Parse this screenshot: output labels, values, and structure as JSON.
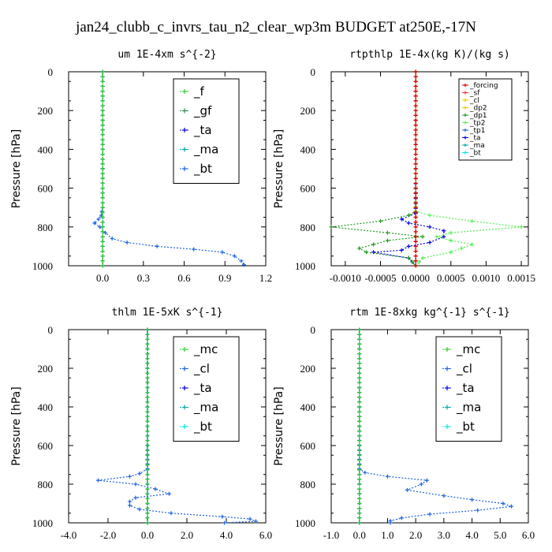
{
  "figure_title": "jan24_clubb_c_invrs_tau_n2_clear_wp3m  BUDGET at250E,-17N",
  "colors": {
    "f": "#33cc33",
    "gf": "#2e8b57",
    "ta": "#0000dd",
    "ma": "#00aaaa",
    "bt": "#00e5e5",
    "mc": "#33cc33",
    "cl": "#1e64dc",
    "forcing": "#dd0000",
    "sf": "#ff3333",
    "dp2": "#eecc00",
    "dp1": "#229922",
    "tp2": "#55ee55",
    "tp1": "#2266cc"
  },
  "chart_data": [
    {
      "type": "line",
      "title": "um  1E-4xm s^{-2}",
      "ylabel": "Pressure [hPa]",
      "xlim": [
        -0.25,
        1.2
      ],
      "ylim": [
        1000,
        0
      ],
      "xticks": [
        0,
        0.3,
        0.6,
        0.9,
        1.2
      ],
      "xtick_labels": [
        "0.0",
        "0.3",
        "0.6",
        "0.9",
        "1.2"
      ],
      "yticks": [
        0,
        200,
        400,
        600,
        800,
        1000
      ],
      "ytick_labels": [
        "0",
        "200",
        "400",
        "600",
        "800",
        "1000"
      ],
      "legend_style": "large",
      "series": [
        {
          "name": "_f",
          "color_key": "f",
          "x": [
            0,
            0
          ],
          "y": [
            0,
            1000
          ]
        },
        {
          "name": "_gf",
          "color_key": "gf",
          "x": [
            0,
            0
          ],
          "y": [
            0,
            1000
          ]
        },
        {
          "name": "_ta",
          "color_key": "ta",
          "x": [
            0,
            0,
            0,
            0
          ],
          "y": [
            0,
            200,
            600,
            1000
          ]
        },
        {
          "name": "_ma",
          "color_key": "ma",
          "x": [
            0,
            0
          ],
          "y": [
            0,
            1000
          ]
        },
        {
          "name": "_bt",
          "color_key": "cl",
          "x": [
            0,
            0,
            0,
            0,
            -0.01,
            -0.03,
            -0.06,
            -0.02,
            0.02,
            0.07,
            0.18,
            0.4,
            0.67,
            0.88,
            0.97,
            1.02,
            1.04
          ],
          "y": [
            0,
            200,
            500,
            700,
            740,
            760,
            780,
            800,
            830,
            860,
            880,
            900,
            915,
            930,
            950,
            975,
            995
          ]
        }
      ]
    },
    {
      "type": "line",
      "title": "rtpthlp  1E-4x(kg K)/(kg s)",
      "ylabel": "Pressure [hPa]",
      "xlim": [
        -0.0012,
        0.0016
      ],
      "ylim": [
        1000,
        0
      ],
      "xticks": [
        -0.001,
        -0.0005,
        0,
        0.0005,
        0.001,
        0.0015
      ],
      "xtick_labels": [
        "-0.0010",
        "-0.0005",
        "0.0000",
        "0.0005",
        "0.0010",
        "0.0015"
      ],
      "yticks": [
        0,
        200,
        400,
        600,
        800,
        1000
      ],
      "ytick_labels": [
        "0",
        "200",
        "400",
        "600",
        "800",
        "1000"
      ],
      "legend_style": "small",
      "series": [
        {
          "name": "_forcing",
          "color_key": "forcing",
          "x": [
            0,
            0
          ],
          "y": [
            0,
            1000
          ]
        },
        {
          "name": "_sf",
          "color_key": "sf",
          "x": [
            0,
            0
          ],
          "y": [
            0,
            1000
          ]
        },
        {
          "name": "_cl",
          "color_key": "dp2",
          "x": [
            0,
            0
          ],
          "y": [
            0,
            1000
          ]
        },
        {
          "name": "_dp2",
          "color_key": "dp2",
          "x": [
            0,
            0
          ],
          "y": [
            0,
            1000
          ]
        },
        {
          "name": "_dp1",
          "color_key": "dp1",
          "x": [
            0,
            0,
            0,
            0,
            -0.0001,
            -0.0005,
            -0.0012,
            -0.0004,
            0.0001,
            -0.0004,
            -0.0006,
            -0.0008,
            -0.0007,
            -0.0001,
            0
          ],
          "y": [
            0,
            500,
            700,
            720,
            740,
            770,
            800,
            830,
            850,
            870,
            890,
            910,
            930,
            960,
            1000
          ]
        },
        {
          "name": "_tp2",
          "color_key": "tp2",
          "x": [
            0,
            0,
            0,
            0.0002,
            0.0008,
            0.0015,
            0.0005,
            0.0003,
            0.0005,
            0.0008,
            0.0005,
            0.0001,
            0
          ],
          "y": [
            0,
            500,
            720,
            740,
            770,
            800,
            830,
            850,
            870,
            890,
            930,
            960,
            1000
          ]
        },
        {
          "name": "_tp1",
          "color_key": "tp1",
          "x": [
            0,
            0
          ],
          "y": [
            0,
            1000
          ]
        },
        {
          "name": "_ta",
          "color_key": "ta",
          "x": [
            0,
            0,
            0,
            -0.0002,
            -0.0001,
            0.0002,
            0.0004,
            0.0004,
            0.0002,
            -0.0001,
            -0.0002,
            -0.0006,
            -0.0001,
            0
          ],
          "y": [
            0,
            500,
            730,
            760,
            780,
            800,
            820,
            850,
            880,
            900,
            920,
            930,
            960,
            1000
          ]
        },
        {
          "name": "_ma",
          "color_key": "ma",
          "x": [
            0,
            0
          ],
          "y": [
            0,
            1000
          ]
        },
        {
          "name": "_bt",
          "color_key": "bt",
          "x": [
            0,
            0
          ],
          "y": [
            0,
            1000
          ]
        }
      ]
    },
    {
      "type": "line",
      "title": "thlm  1E-5xK s^{-1}",
      "ylabel": "Pressure [hPa]",
      "xlim": [
        -4,
        6
      ],
      "ylim": [
        1000,
        0
      ],
      "xticks": [
        -4,
        -2,
        0,
        2,
        4,
        6
      ],
      "xtick_labels": [
        "-4.0",
        "-2.0",
        "0.0",
        "2.0",
        "4.0",
        "6.0"
      ],
      "yticks": [
        0,
        200,
        400,
        600,
        800,
        1000
      ],
      "ytick_labels": [
        "0",
        "200",
        "400",
        "600",
        "800",
        "1000"
      ],
      "legend_style": "large",
      "series": [
        {
          "name": "_mc",
          "color_key": "mc",
          "x": [
            0,
            0
          ],
          "y": [
            0,
            1000
          ]
        },
        {
          "name": "_cl",
          "color_key": "cl",
          "x": [
            0,
            0,
            0,
            -0.4,
            -0.9,
            -2.5,
            -0.6,
            0.4,
            1.1,
            -0.6,
            -0.9,
            -0.9,
            -0.4,
            1.2,
            3.8,
            5.2,
            5.5,
            3.9
          ],
          "y": [
            0,
            500,
            720,
            745,
            760,
            780,
            800,
            825,
            850,
            870,
            890,
            910,
            930,
            950,
            968,
            980,
            992,
            1000
          ]
        },
        {
          "name": "_ta",
          "color_key": "ta",
          "x": [
            0,
            0
          ],
          "y": [
            0,
            1000
          ]
        },
        {
          "name": "_ma",
          "color_key": "ma",
          "x": [
            0,
            0
          ],
          "y": [
            0,
            1000
          ]
        },
        {
          "name": "_bt",
          "color_key": "bt",
          "x": [
            0,
            0
          ],
          "y": [
            0,
            1000
          ]
        }
      ]
    },
    {
      "type": "line",
      "title": "rtm  1E-8xkg kg^{-1} s^{-1}",
      "ylabel": "Pressure [hPa]",
      "xlim": [
        -1,
        6
      ],
      "ylim": [
        1000,
        0
      ],
      "xticks": [
        -1,
        0,
        1,
        2,
        3,
        4,
        5,
        6
      ],
      "xtick_labels": [
        "-1.0",
        "0.0",
        "1.0",
        "2.0",
        "3.0",
        "4.0",
        "5.0",
        "6.0"
      ],
      "yticks": [
        0,
        200,
        400,
        600,
        800,
        1000
      ],
      "ytick_labels": [
        "0",
        "200",
        "400",
        "600",
        "800",
        "1000"
      ],
      "legend_style": "large",
      "series": [
        {
          "name": "_mc",
          "color_key": "mc",
          "x": [
            0,
            0
          ],
          "y": [
            0,
            1000
          ]
        },
        {
          "name": "_cl",
          "color_key": "cl",
          "x": [
            0,
            0,
            0,
            0.2,
            1.0,
            2.4,
            2.2,
            1.7,
            3.0,
            4.0,
            5.1,
            5.4,
            4.2,
            2.5,
            1.5,
            1.1,
            1.1
          ],
          "y": [
            0,
            500,
            720,
            740,
            760,
            780,
            800,
            830,
            860,
            880,
            900,
            915,
            935,
            955,
            975,
            990,
            1000
          ]
        },
        {
          "name": "_ta",
          "color_key": "ta",
          "x": [
            0,
            0
          ],
          "y": [
            0,
            1000
          ]
        },
        {
          "name": "_ma",
          "color_key": "ma",
          "x": [
            0,
            0
          ],
          "y": [
            0,
            1000
          ]
        },
        {
          "name": "_bt",
          "color_key": "bt",
          "x": [
            0,
            0
          ],
          "y": [
            0,
            1000
          ]
        }
      ]
    }
  ]
}
